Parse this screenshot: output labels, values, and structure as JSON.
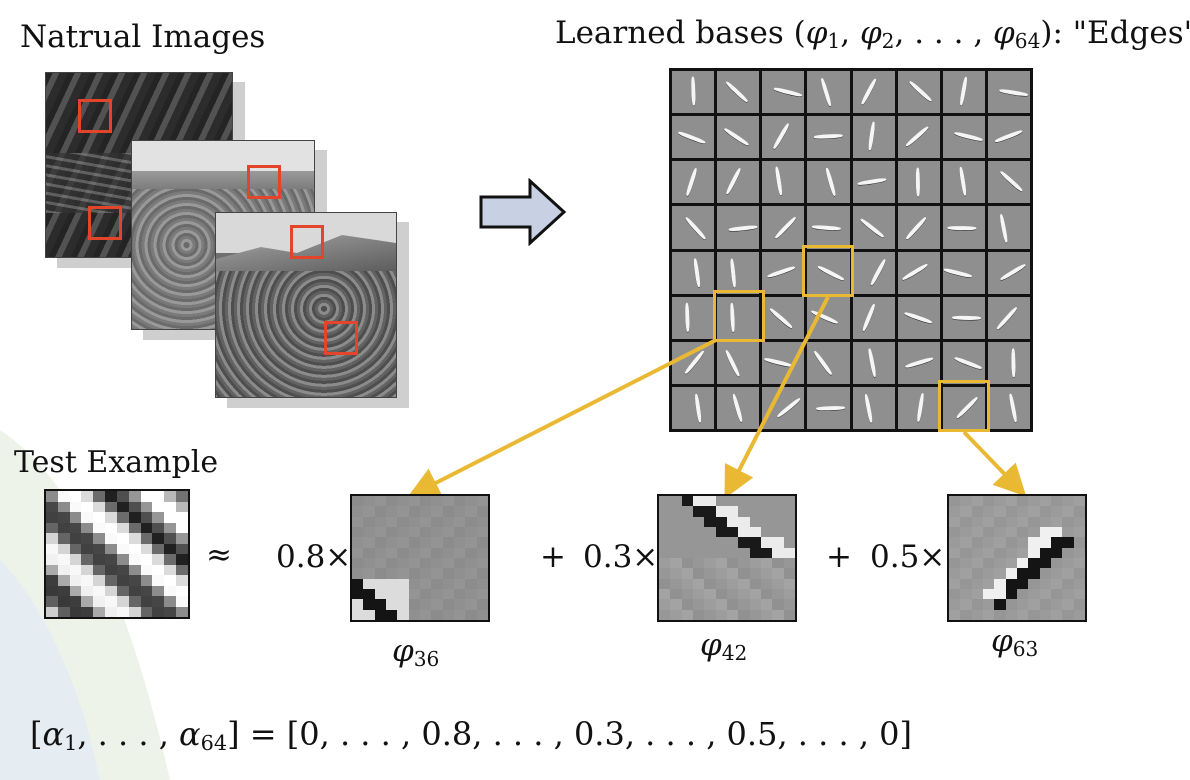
{
  "headings": {
    "natural_images": "Natrual Images",
    "learned_bases": "Learned bases (φ1, φ2, . . . , φ64): \"Edges\"",
    "learned_prefix": "Learned bases (",
    "learned_phi1": "φ",
    "learned_sub1": "1",
    "learned_phi2": "φ",
    "learned_sub2": "2",
    "learned_dots": ", . . . , ",
    "learned_phi64": "φ",
    "learned_sub64": "64",
    "learned_suffix": "): \"Edges\"",
    "test_example": "Test Example"
  },
  "equation": {
    "approx": "≈",
    "coef1": "0.8×",
    "plus1": "+",
    "coef2": "0.3×",
    "plus2": "+",
    "coef3": "0.5×",
    "basis1_symbol": "φ",
    "basis1_index": "36",
    "basis2_symbol": "φ",
    "basis2_index": "42",
    "basis3_symbol": "φ",
    "basis3_index": "63"
  },
  "alpha_vector": {
    "lhs_open": "[",
    "alpha": "α",
    "sub1": "1",
    "mid": ", . . . , ",
    "sub64": "64",
    "lhs_close": "] = [0, . . . , 0.8, . . . , 0.3, . . . , 0.5, . . . , 0]"
  },
  "colors": {
    "red_box": "#e2452a",
    "yellow_box": "#eab934",
    "arrow_fill": "#c7d1e3",
    "arrow_stroke": "#111111",
    "tile_gray": "#8f8f8f",
    "shadow": "#cfcfcf"
  },
  "icons": {
    "big_arrow": "right-block-arrow-icon",
    "yellow_arrows": "pointer-arrow-icon"
  }
}
